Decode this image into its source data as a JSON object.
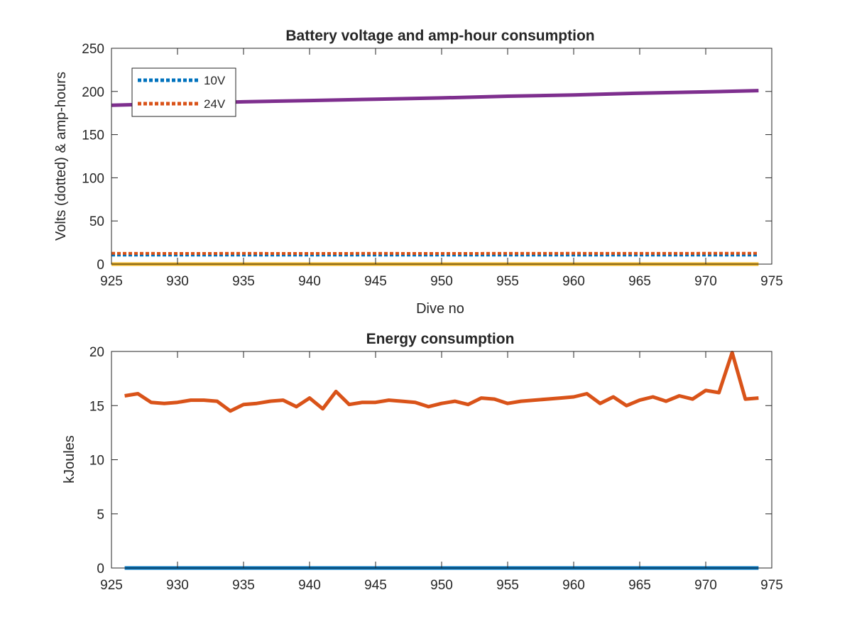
{
  "chart_data": [
    {
      "type": "line",
      "title": "Battery voltage and amp-hour consumption",
      "xlabel": "Dive no",
      "ylabel": "Volts (dotted) & amp-hours",
      "xlim": [
        925,
        975
      ],
      "ylim": [
        0,
        250
      ],
      "xticks": [
        925,
        930,
        935,
        940,
        945,
        950,
        955,
        960,
        965,
        970,
        975
      ],
      "yticks": [
        0,
        50,
        100,
        150,
        200,
        250
      ],
      "grid": false,
      "legend_position": "top-left",
      "series": [
        {
          "name": "10V",
          "color": "#0072BD",
          "style": "dotted",
          "x": [
            925,
            930,
            935,
            940,
            945,
            950,
            955,
            960,
            965,
            970,
            974
          ],
          "y": [
            10.5,
            10.5,
            10.5,
            10.5,
            10.5,
            10.5,
            10.5,
            10.5,
            10.5,
            10.5,
            10.5
          ]
        },
        {
          "name": "24V",
          "color": "#D95319",
          "style": "dotted",
          "x": [
            925,
            930,
            935,
            940,
            945,
            950,
            955,
            960,
            965,
            970,
            974
          ],
          "y": [
            12.5,
            12.3,
            12.4,
            12.3,
            12.4,
            12.3,
            12.4,
            12.5,
            12.4,
            12.5,
            12.6
          ]
        },
        {
          "color": "#EDB120",
          "style": "solid",
          "x": [
            925,
            974
          ],
          "y": [
            0,
            0
          ]
        },
        {
          "color": "#7E2F8E",
          "style": "solid",
          "x": [
            925,
            930,
            935,
            940,
            945,
            950,
            955,
            960,
            965,
            970,
            974
          ],
          "y": [
            184,
            186,
            188,
            189.5,
            191,
            192.5,
            194.5,
            196,
            198,
            199.5,
            201
          ]
        }
      ]
    },
    {
      "type": "line",
      "title": "Energy consumption",
      "xlabel": "",
      "ylabel": "kJoules",
      "xlim": [
        925,
        975
      ],
      "ylim": [
        0,
        20
      ],
      "xticks": [
        925,
        930,
        935,
        940,
        945,
        950,
        955,
        960,
        965,
        970,
        975
      ],
      "yticks": [
        0,
        5,
        10,
        15,
        20
      ],
      "grid": false,
      "series": [
        {
          "color": "#0072BD",
          "style": "solid",
          "x": [
            926,
            974
          ],
          "y": [
            0,
            0
          ]
        },
        {
          "color": "#D95319",
          "style": "solid",
          "x": [
            926,
            927,
            928,
            929,
            930,
            931,
            932,
            933,
            934,
            935,
            936,
            937,
            938,
            939,
            940,
            941,
            942,
            943,
            944,
            945,
            946,
            947,
            948,
            949,
            950,
            951,
            952,
            953,
            954,
            955,
            956,
            957,
            958,
            959,
            960,
            961,
            962,
            963,
            964,
            965,
            966,
            967,
            968,
            969,
            970,
            971,
            972,
            973,
            974
          ],
          "y": [
            15.9,
            16.1,
            15.3,
            15.2,
            15.3,
            15.5,
            15.5,
            15.4,
            14.5,
            15.1,
            15.2,
            15.4,
            15.5,
            14.9,
            15.7,
            14.7,
            16.3,
            15.1,
            15.3,
            15.3,
            15.5,
            15.4,
            15.3,
            14.9,
            15.2,
            15.4,
            15.1,
            15.7,
            15.6,
            15.2,
            15.4,
            15.5,
            15.6,
            15.7,
            15.8,
            16.1,
            15.2,
            15.8,
            15.0,
            15.5,
            15.8,
            15.4,
            15.9,
            15.6,
            16.4,
            16.2,
            19.9,
            15.6,
            15.7
          ]
        }
      ]
    }
  ]
}
